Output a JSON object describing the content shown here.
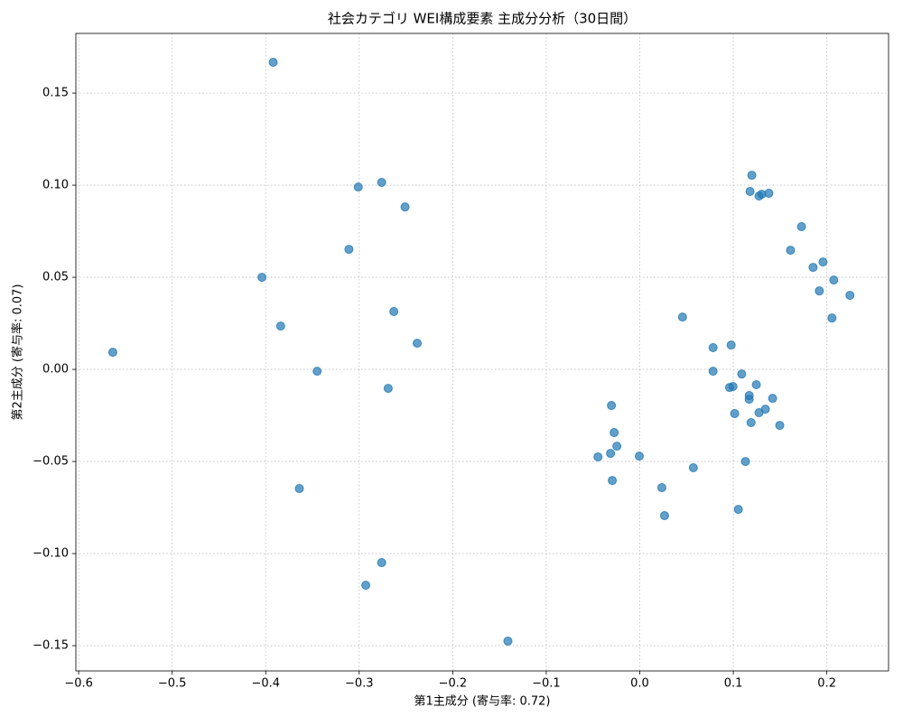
{
  "chart_data": {
    "type": "scatter",
    "title": "社会カテゴリ WEI構成要素 主成分分析（30日間）",
    "x_label": "第1主成分 (寄与率: 0.72)",
    "y_label": "第2主成分 (寄与率: 0.07)",
    "color": "#1f77b4",
    "grid": true,
    "xlim": [
      -0.603,
      0.266
    ],
    "ylim": [
      -0.1637,
      0.1824
    ],
    "xticks": [
      {
        "value": -0.6,
        "label": "−0.6"
      },
      {
        "value": -0.5,
        "label": "−0.5"
      },
      {
        "value": -0.4,
        "label": "−0.4"
      },
      {
        "value": -0.3,
        "label": "−0.3"
      },
      {
        "value": -0.2,
        "label": "−0.2"
      },
      {
        "value": -0.1,
        "label": "−0.1"
      },
      {
        "value": 0,
        "label": "0.0"
      },
      0.1,
      0.2
    ],
    "yticks": [
      {
        "value": -0.15,
        "label": "−0.15"
      },
      {
        "value": -0.1,
        "label": "−0.10"
      },
      {
        "value": -0.05,
        "label": "−0.05"
      },
      {
        "value": 0,
        "label": "0.00"
      },
      0.05,
      {
        "value": 0.1,
        "label": "0.10"
      },
      0.15
    ],
    "x": [
      -0.5635,
      -0.392,
      -0.301,
      -0.276,
      -0.251,
      -0.311,
      -0.404,
      -0.263,
      -0.384,
      -0.238,
      -0.345,
      -0.269,
      -0.364,
      -0.276,
      -0.293,
      -0.141,
      -0.0447,
      -0.0303,
      -0.0274,
      -0.0245,
      -0.0313,
      -0.0005,
      -0.0294,
      0.0236,
      0.0265,
      0.0573,
      0.0457,
      0.0784,
      0.0784,
      0.0977,
      0.109,
      0.096,
      0.0996,
      0.1015,
      0.117,
      0.117,
      0.1246,
      0.119,
      0.1275,
      0.1343,
      0.142,
      0.1497,
      0.113,
      0.1054,
      0.1198,
      0.1179,
      0.1275,
      0.1304,
      0.138,
      0.1729,
      0.1612,
      0.1959,
      0.1853,
      0.2074,
      0.192,
      0.2247,
      0.2055
    ],
    "values": [
      0.0093,
      0.1667,
      0.099,
      0.1015,
      0.0882,
      0.0652,
      0.05,
      0.0314,
      0.0235,
      0.0142,
      -0.001,
      -0.0103,
      -0.0647,
      -0.1049,
      -0.1172,
      -0.1475,
      -0.0475,
      -0.0196,
      -0.0343,
      -0.0417,
      -0.0456,
      -0.0471,
      -0.0603,
      -0.0642,
      -0.0794,
      -0.0534,
      0.0284,
      0.0118,
      -0.001,
      0.0132,
      -0.0025,
      -0.0098,
      -0.0093,
      -0.024,
      -0.0162,
      -0.0142,
      -0.0083,
      -0.0289,
      -0.0235,
      -0.0216,
      -0.0157,
      -0.0304,
      -0.05,
      -0.076,
      0.1054,
      0.0966,
      0.0941,
      0.0951,
      0.0956,
      0.0775,
      0.0647,
      0.0583,
      0.0554,
      0.0485,
      0.0426,
      0.0402,
      0.0279
    ]
  }
}
